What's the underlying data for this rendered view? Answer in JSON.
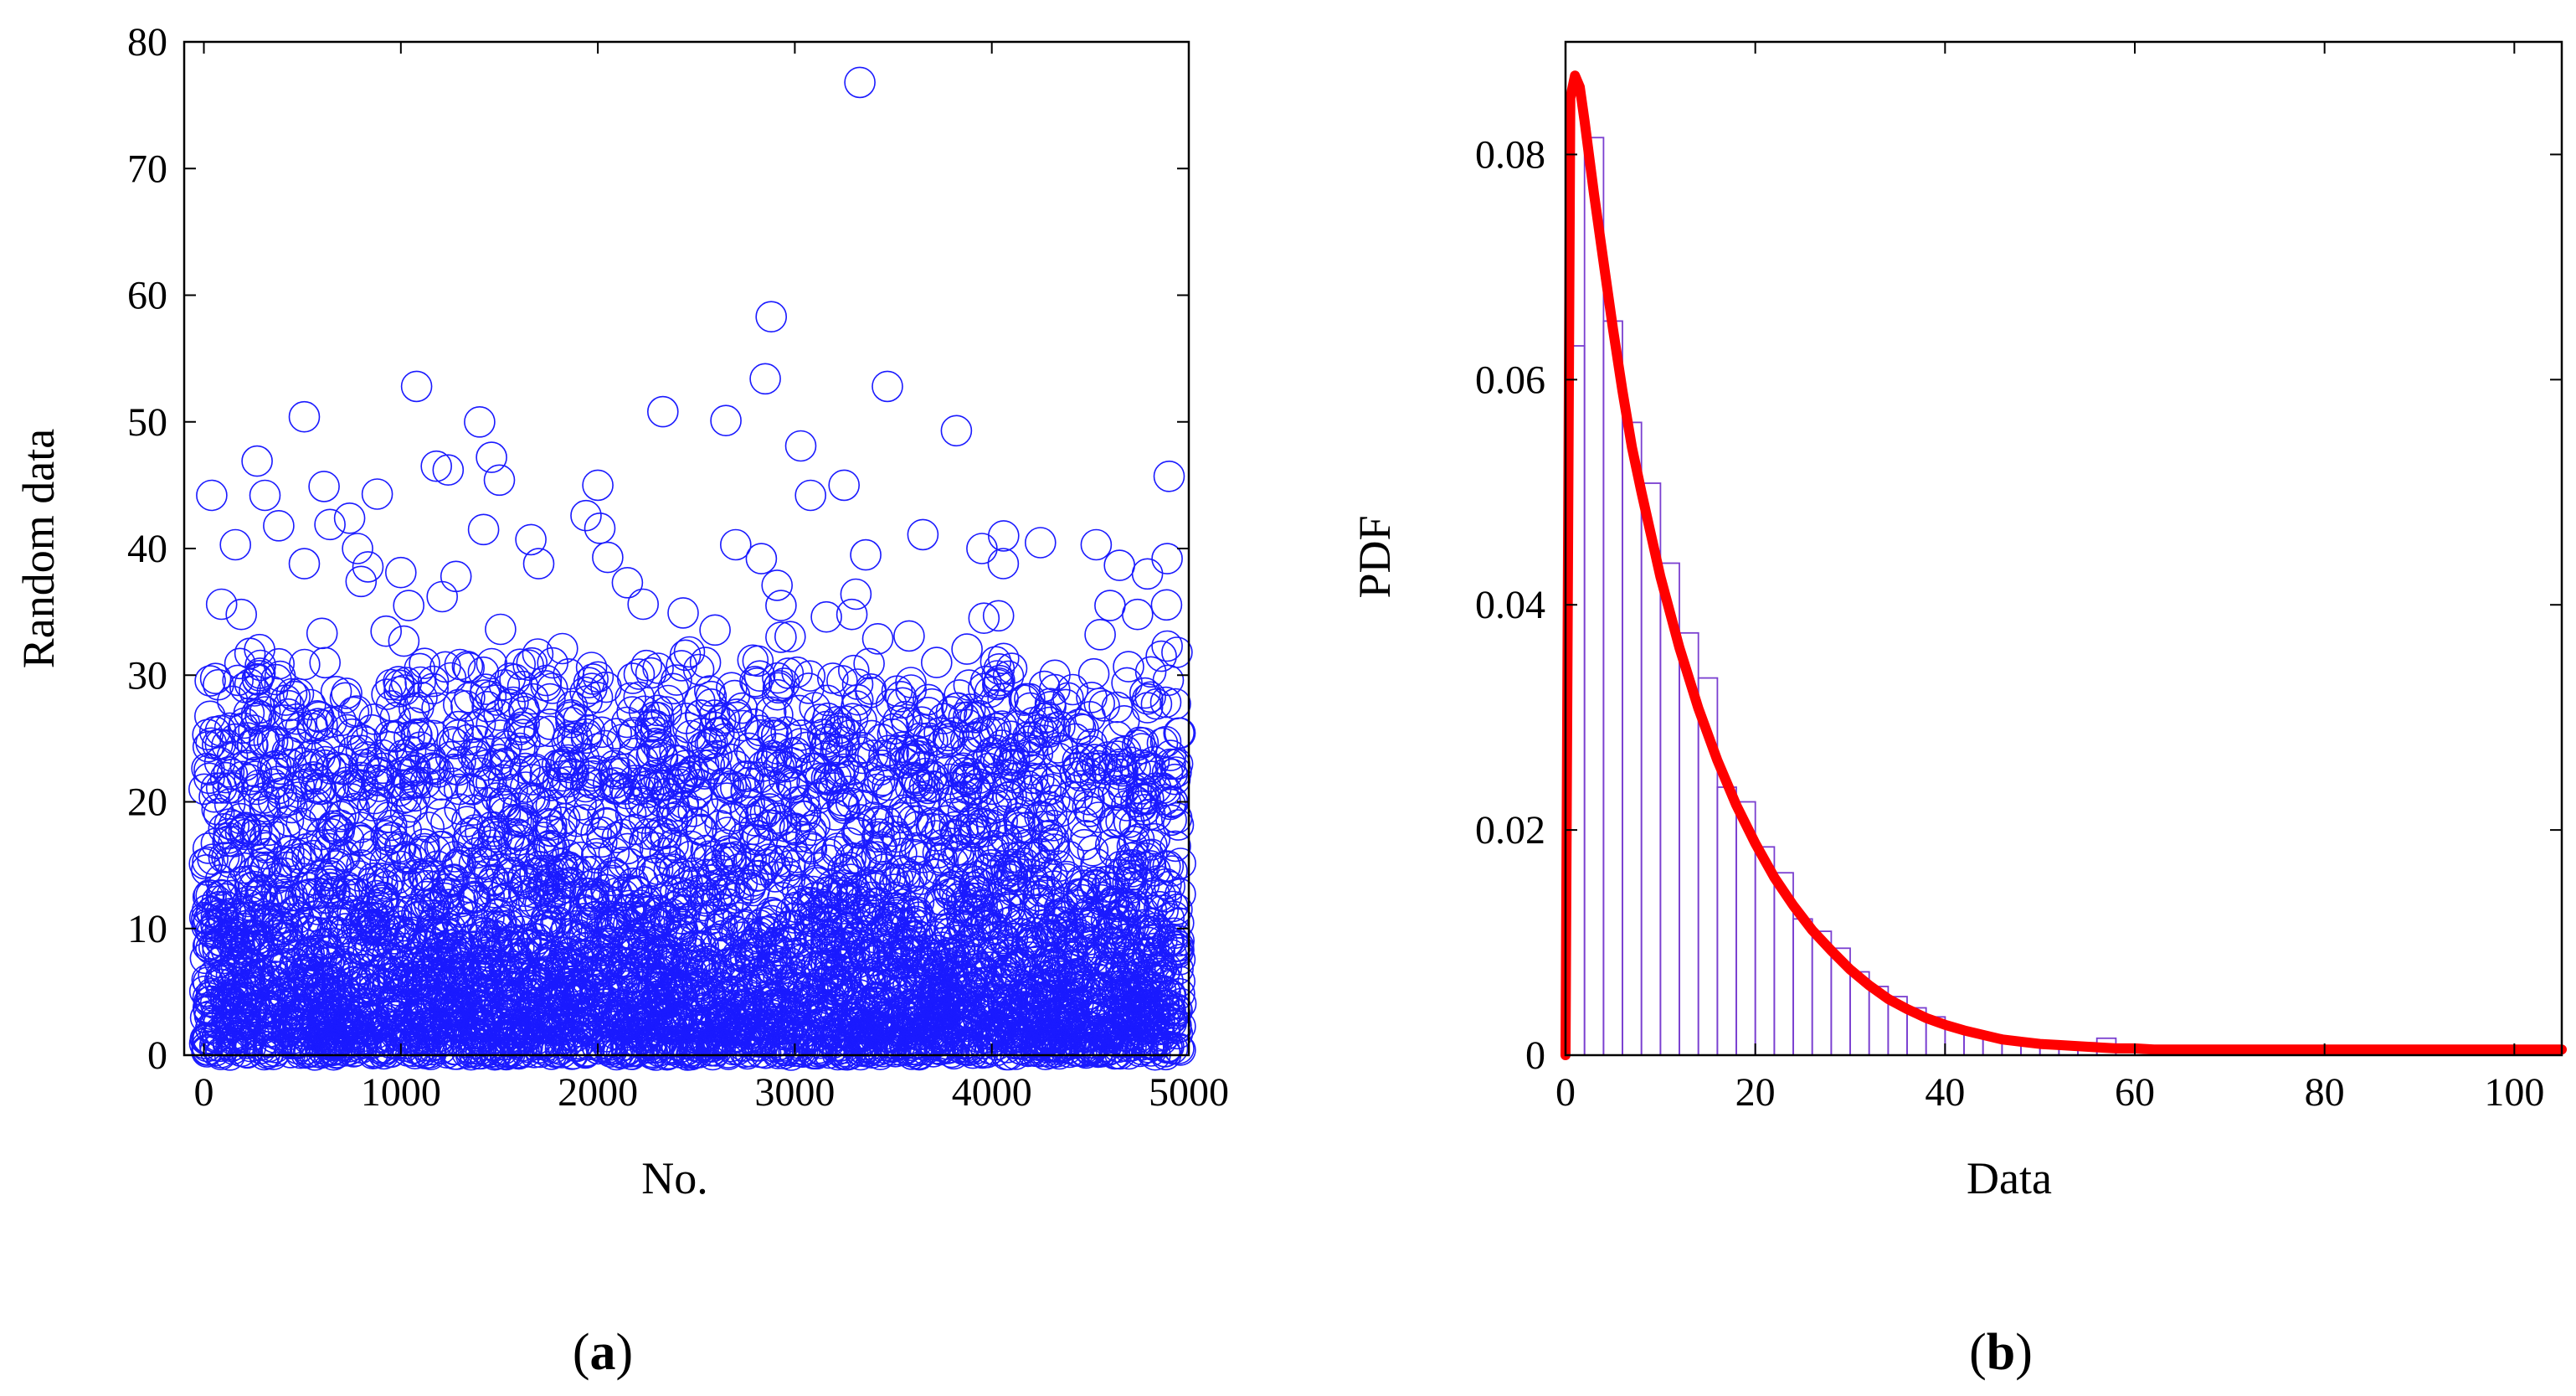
{
  "chart_data": [
    {
      "type": "scatter",
      "panel_label": "a",
      "title": "",
      "xlabel": "No.",
      "ylabel": "Random data",
      "xlim": [
        -100,
        5000
      ],
      "ylim": [
        0,
        80
      ],
      "xticks": [
        0,
        1000,
        2000,
        3000,
        4000,
        5000
      ],
      "yticks": [
        0,
        10,
        20,
        30,
        40,
        50,
        60,
        70,
        80
      ],
      "grid": false,
      "legend": "none",
      "marker": "open-circle",
      "color": "#1a1aff",
      "n_points": 5000,
      "distribution": "exponential",
      "mean": 11.5,
      "notable_points": [
        [
          3330,
          76.8
        ],
        [
          2880,
          58.3
        ],
        [
          2850,
          53.4
        ],
        [
          1080,
          52.8
        ],
        [
          3470,
          52.8
        ],
        [
          2330,
          50.8
        ],
        [
          510,
          50.4
        ],
        [
          2650,
          50.1
        ],
        [
          1400,
          50.0
        ],
        [
          3820,
          49.3
        ],
        [
          3030,
          48.1
        ],
        [
          1180,
          46.5
        ],
        [
          1240,
          46.2
        ],
        [
          1460,
          47.2
        ],
        [
          1500,
          45.4
        ],
        [
          4900,
          45.7
        ],
        [
          3250,
          45.0
        ],
        [
          2000,
          45.0
        ],
        [
          270,
          46.9
        ],
        [
          610,
          44.9
        ],
        [
          40,
          44.2
        ],
        [
          880,
          44.3
        ],
        [
          310,
          44.2
        ],
        [
          3080,
          44.2
        ],
        [
          380,
          41.8
        ],
        [
          640,
          41.9
        ],
        [
          1420,
          41.5
        ],
        [
          1660,
          40.7
        ],
        [
          1940,
          42.6
        ],
        [
          2010,
          41.6
        ],
        [
          4060,
          41.0
        ],
        [
          3650,
          41.1
        ],
        [
          160,
          40.3
        ],
        [
          780,
          40.0
        ],
        [
          2700,
          40.3
        ],
        [
          2830,
          39.2
        ],
        [
          3360,
          39.5
        ],
        [
          4530,
          40.3
        ],
        [
          4890,
          39.2
        ],
        [
          4790,
          38.0
        ],
        [
          510,
          38.8
        ],
        [
          1700,
          38.8
        ],
        [
          2050,
          39.3
        ],
        [
          3950,
          40.0
        ],
        [
          2150,
          37.3
        ],
        [
          1280,
          37.8
        ],
        [
          1000,
          38.1
        ],
        [
          2910,
          37.1
        ],
        [
          1210,
          36.2
        ],
        [
          3310,
          36.4
        ],
        [
          1040,
          35.5
        ],
        [
          90,
          35.6
        ],
        [
          2230,
          35.6
        ],
        [
          4600,
          35.5
        ],
        [
          190,
          34.8
        ],
        [
          2930,
          35.5
        ],
        [
          3160,
          34.6
        ],
        [
          3290,
          34.8
        ],
        [
          3960,
          34.5
        ],
        [
          4740,
          34.8
        ],
        [
          600,
          33.3
        ],
        [
          1820,
          32.1
        ],
        [
          2930,
          33.0
        ],
        [
          3580,
          33.1
        ],
        [
          4550,
          33.2
        ],
        [
          4890,
          32.3
        ],
        [
          4940,
          31.8
        ],
        [
          3720,
          31.0
        ],
        [
          4320,
          30.0
        ],
        [
          4860,
          31.5
        ]
      ]
    },
    {
      "type": "bar",
      "subtype": "histogram-with-pdf",
      "panel_label": "b",
      "title": "",
      "xlabel": "Data",
      "ylabel": "PDF",
      "xlim": [
        0,
        105
      ],
      "ylim": [
        0,
        0.09
      ],
      "xticks": [
        0,
        20,
        40,
        60,
        80,
        100
      ],
      "yticks": [
        0,
        0.02,
        0.04,
        0.06,
        0.08
      ],
      "ytick_labels": [
        "0",
        "0.02",
        "0.04",
        "0.06",
        "0.08"
      ],
      "grid": false,
      "legend": "none",
      "bar_color": "#7a3fd0",
      "bin_width": 2,
      "bins_start": [
        0,
        2,
        4,
        6,
        8,
        10,
        12,
        14,
        16,
        18,
        20,
        22,
        24,
        26,
        28,
        30,
        32,
        34,
        36,
        38,
        40,
        42,
        44,
        46,
        48,
        50,
        52,
        54,
        56,
        58
      ],
      "values": [
        0.063,
        0.0815,
        0.0652,
        0.0562,
        0.0508,
        0.0437,
        0.0375,
        0.0335,
        0.0238,
        0.0225,
        0.0185,
        0.0162,
        0.0121,
        0.011,
        0.0095,
        0.0074,
        0.0061,
        0.0052,
        0.0042,
        0.0034,
        0.0025,
        0.0021,
        0.0018,
        0.0013,
        0.0012,
        0.0009,
        0.001,
        0.0011,
        0.0015,
        0.0006
      ],
      "curve": {
        "color": "#ff0000",
        "x": [
          0,
          0.5,
          1,
          1.5,
          2,
          3,
          4,
          5,
          6,
          7,
          8,
          10,
          12,
          14,
          16,
          18,
          20,
          22,
          24,
          26,
          28,
          30,
          32,
          34,
          36,
          38,
          40,
          42,
          44,
          46,
          48,
          50,
          52,
          54,
          56,
          58,
          60,
          62,
          65,
          70,
          80,
          90,
          100,
          105
        ],
        "y": [
          0.0,
          0.085,
          0.087,
          0.086,
          0.083,
          0.0765,
          0.0705,
          0.0645,
          0.059,
          0.054,
          0.05,
          0.0425,
          0.0362,
          0.0308,
          0.0262,
          0.0222,
          0.0188,
          0.0158,
          0.0133,
          0.0111,
          0.0093,
          0.0076,
          0.0062,
          0.005,
          0.0041,
          0.0033,
          0.0027,
          0.0022,
          0.0018,
          0.0014,
          0.0012,
          0.001,
          0.0009,
          0.0008,
          0.0007,
          0.0006,
          0.0006,
          0.0005,
          0.0005,
          0.0005,
          0.0005,
          0.0005,
          0.0005,
          0.0005
        ]
      }
    }
  ]
}
